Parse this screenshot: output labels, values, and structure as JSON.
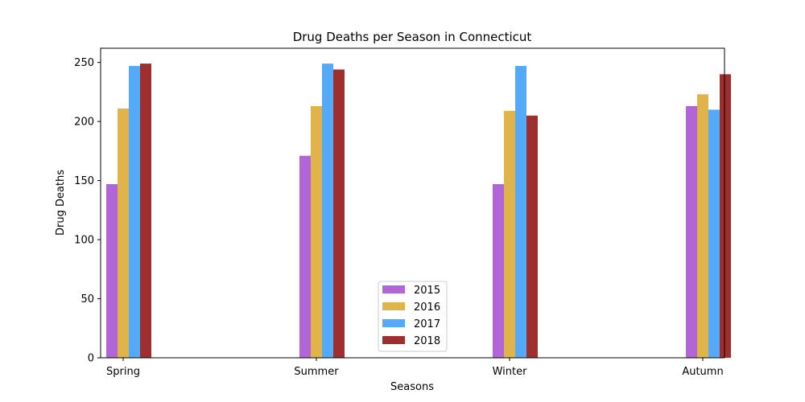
{
  "chart_data": {
    "type": "bar",
    "title": "Drug Deaths per Season in Connecticut",
    "xlabel": "Seasons",
    "ylabel": "Drug Deaths",
    "categories": [
      "Spring",
      "Summer",
      "Winter",
      "Autumn"
    ],
    "series": [
      {
        "name": "2015",
        "color": "#b066d6",
        "values": [
          147,
          171,
          147,
          213
        ]
      },
      {
        "name": "2016",
        "color": "#e0b44a",
        "values": [
          211,
          213,
          209,
          223
        ]
      },
      {
        "name": "2017",
        "color": "#54aaf7",
        "values": [
          247,
          249,
          247,
          210
        ]
      },
      {
        "name": "2018",
        "color": "#9e2f2f",
        "values": [
          249,
          244,
          205,
          240
        ]
      }
    ],
    "ylim": [
      0,
      262
    ],
    "yticks": [
      0,
      50,
      100,
      150,
      200,
      250
    ],
    "grid": false,
    "legend_position": "bottom-center"
  }
}
